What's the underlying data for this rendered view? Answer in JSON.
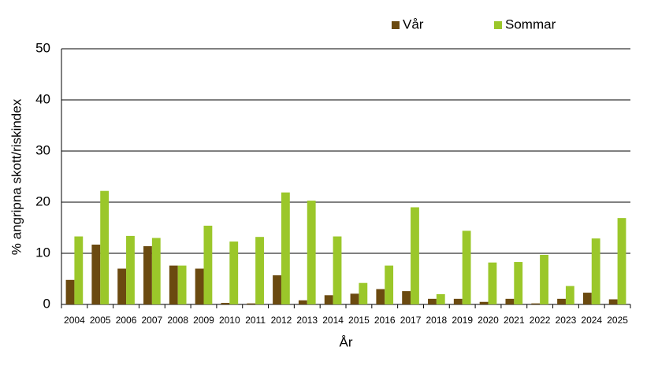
{
  "chart_data": {
    "type": "bar",
    "y_label": "% angripna skott/riskindex",
    "x_label": "År",
    "categories": [
      "2004",
      "2005",
      "2006",
      "2007",
      "2008",
      "2009",
      "2010",
      "2011",
      "2012",
      "2013",
      "2014",
      "2015",
      "2016",
      "2017",
      "2018",
      "2019",
      "2020",
      "2021",
      "2022",
      "2023",
      "2024",
      "2025"
    ],
    "series": [
      {
        "name": "Vår",
        "color": "#6b4a10",
        "values": [
          4.8,
          11.7,
          7.0,
          11.4,
          7.6,
          7.0,
          0.3,
          0.2,
          5.7,
          0.8,
          1.8,
          2.1,
          3.0,
          2.6,
          1.1,
          1.1,
          0.5,
          1.1,
          0.2,
          1.1,
          2.3,
          1.0
        ]
      },
      {
        "name": "Sommar",
        "color": "#9bc72a",
        "values": [
          13.3,
          22.2,
          13.4,
          13.0,
          7.6,
          15.4,
          12.3,
          13.2,
          21.9,
          20.3,
          13.3,
          4.2,
          7.6,
          19.0,
          2.0,
          14.4,
          8.2,
          8.3,
          9.7,
          3.6,
          12.9,
          16.9
        ]
      }
    ],
    "ylim": [
      0,
      50
    ],
    "yticks": [
      0,
      10,
      20,
      30,
      40,
      50
    ],
    "grid": true
  }
}
